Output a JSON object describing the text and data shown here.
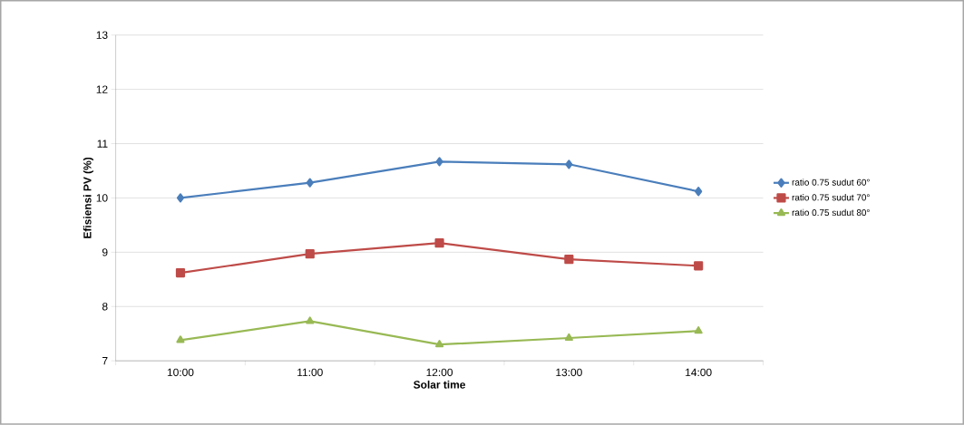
{
  "chart_data": {
    "type": "line",
    "xlabel": "Solar time",
    "ylabel": "Efisiensi PV (%)",
    "categories": [
      "10:00",
      "11:00",
      "12:00",
      "13:00",
      "14:00"
    ],
    "series": [
      {
        "name": "ratio 0.75 sudut 60°",
        "color": "#4a7ebb",
        "marker": "diamond",
        "values": [
          10.0,
          10.28,
          10.67,
          10.62,
          10.12
        ]
      },
      {
        "name": "ratio 0.75 sudut 70°",
        "color": "#be4b48",
        "marker": "square",
        "values": [
          8.62,
          8.97,
          9.17,
          8.87,
          8.75
        ]
      },
      {
        "name": "ratio 0.75 sudut 80°",
        "color": "#98b954",
        "marker": "triangle",
        "values": [
          7.38,
          7.73,
          7.3,
          7.42,
          7.55
        ]
      }
    ],
    "ylim": [
      7,
      13
    ],
    "yticks": [
      7,
      8,
      9,
      10,
      11,
      12,
      13
    ],
    "grid": "y",
    "legend": "right",
    "line_style": "solid"
  }
}
